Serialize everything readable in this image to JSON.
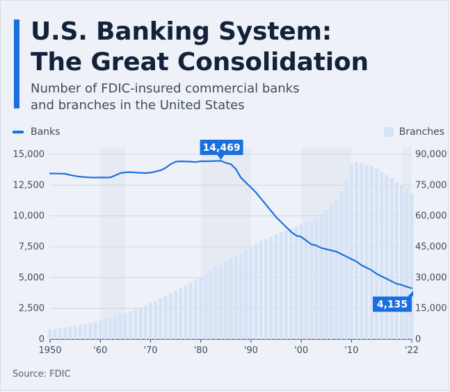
{
  "header": {
    "title_line1": "U.S. Banking System:",
    "title_line2": "The Great Consolidation",
    "subtitle_line1": "Number of FDIC-insured commercial banks",
    "subtitle_line2": "and branches in the United States"
  },
  "legend": {
    "banks": "Banks",
    "branches": "Branches"
  },
  "source": "Source: FDIC",
  "colors": {
    "accent": "#1a6fe0",
    "line": "#1a6fe0",
    "bars": "#d6e3f6",
    "band": "#e3e8f1"
  },
  "chart_data": {
    "type": "line",
    "x_ticks": [
      "1950",
      "'60",
      "'70",
      "'80",
      "'90",
      "'00",
      "'10",
      "'22"
    ],
    "x_tick_values": [
      1950,
      1960,
      1970,
      1980,
      1990,
      2000,
      2010,
      2022
    ],
    "xlim": [
      1950,
      2022
    ],
    "y_left_ticks": [
      "0",
      "2,500",
      "5,000",
      "7,500",
      "10,000",
      "12,500",
      "15,000"
    ],
    "y_right_ticks": [
      "0",
      "15,000",
      "30,000",
      "45,000",
      "60,000",
      "75,000",
      "90,000"
    ],
    "ylim_left": [
      0,
      15000
    ],
    "ylim_right": [
      0,
      90000
    ],
    "recession_bands": [
      [
        1960,
        1965
      ],
      [
        1980,
        1990
      ],
      [
        2000,
        2010
      ],
      [
        2020,
        2022
      ]
    ],
    "annotations": [
      {
        "text": "14,469",
        "x": 1984,
        "y": 14469
      },
      {
        "text": "4,135",
        "x": 2022,
        "y": 4135
      }
    ],
    "series": [
      {
        "name": "Banks",
        "axis": "left",
        "x": [
          1950,
          1951,
          1952,
          1953,
          1954,
          1955,
          1956,
          1957,
          1958,
          1959,
          1960,
          1961,
          1962,
          1963,
          1964,
          1965,
          1966,
          1967,
          1968,
          1969,
          1970,
          1971,
          1972,
          1973,
          1974,
          1975,
          1976,
          1977,
          1978,
          1979,
          1980,
          1981,
          1982,
          1983,
          1984,
          1985,
          1986,
          1987,
          1988,
          1989,
          1990,
          1991,
          1992,
          1993,
          1994,
          1995,
          1996,
          1997,
          1998,
          1999,
          2000,
          2001,
          2002,
          2003,
          2004,
          2005,
          2006,
          2007,
          2008,
          2009,
          2010,
          2011,
          2012,
          2013,
          2014,
          2015,
          2016,
          2017,
          2018,
          2019,
          2020,
          2021,
          2022
        ],
        "values": [
          13446,
          13440,
          13430,
          13420,
          13320,
          13240,
          13180,
          13150,
          13120,
          13110,
          13120,
          13110,
          13130,
          13290,
          13480,
          13540,
          13550,
          13520,
          13500,
          13480,
          13510,
          13600,
          13700,
          13900,
          14200,
          14400,
          14430,
          14420,
          14400,
          14370,
          14440,
          14430,
          14450,
          14460,
          14469,
          14300,
          14200,
          13800,
          13100,
          12700,
          12300,
          11900,
          11400,
          10900,
          10400,
          9900,
          9500,
          9100,
          8700,
          8400,
          8300,
          8000,
          7700,
          7600,
          7400,
          7300,
          7200,
          7100,
          6900,
          6700,
          6500,
          6300,
          6000,
          5800,
          5600,
          5300,
          5100,
          4900,
          4700,
          4500,
          4400,
          4250,
          4135
        ]
      },
      {
        "name": "Branches",
        "axis": "right",
        "x": [
          1950,
          1951,
          1952,
          1953,
          1954,
          1955,
          1956,
          1957,
          1958,
          1959,
          1960,
          1961,
          1962,
          1963,
          1964,
          1965,
          1966,
          1967,
          1968,
          1969,
          1970,
          1971,
          1972,
          1973,
          1974,
          1975,
          1976,
          1977,
          1978,
          1979,
          1980,
          1981,
          1982,
          1983,
          1984,
          1985,
          1986,
          1987,
          1988,
          1989,
          1990,
          1991,
          1992,
          1993,
          1994,
          1995,
          1996,
          1997,
          1998,
          1999,
          2000,
          2001,
          2002,
          2003,
          2004,
          2005,
          2006,
          2007,
          2008,
          2009,
          2010,
          2011,
          2012,
          2013,
          2014,
          2015,
          2016,
          2017,
          2018,
          2019,
          2020,
          2021,
          2022
        ],
        "values": [
          4700,
          5000,
          5300,
          5700,
          6100,
          6500,
          6900,
          7400,
          7900,
          8500,
          9100,
          9800,
          10500,
          11300,
          12100,
          12900,
          13800,
          14700,
          15600,
          16600,
          17600,
          18700,
          19800,
          21000,
          22300,
          23600,
          24900,
          26200,
          27600,
          29000,
          30400,
          32000,
          33500,
          35200,
          36300,
          37800,
          39000,
          40600,
          42000,
          43500,
          45200,
          46500,
          47800,
          49000,
          50000,
          51000,
          52000,
          52800,
          53800,
          54800,
          56000,
          57000,
          57800,
          59000,
          61000,
          63000,
          65500,
          68000,
          72000,
          77000,
          85000,
          86500,
          86000,
          85000,
          84200,
          83000,
          81500,
          80000,
          78500,
          76500,
          75000,
          73500,
          71000
        ]
      }
    ]
  }
}
